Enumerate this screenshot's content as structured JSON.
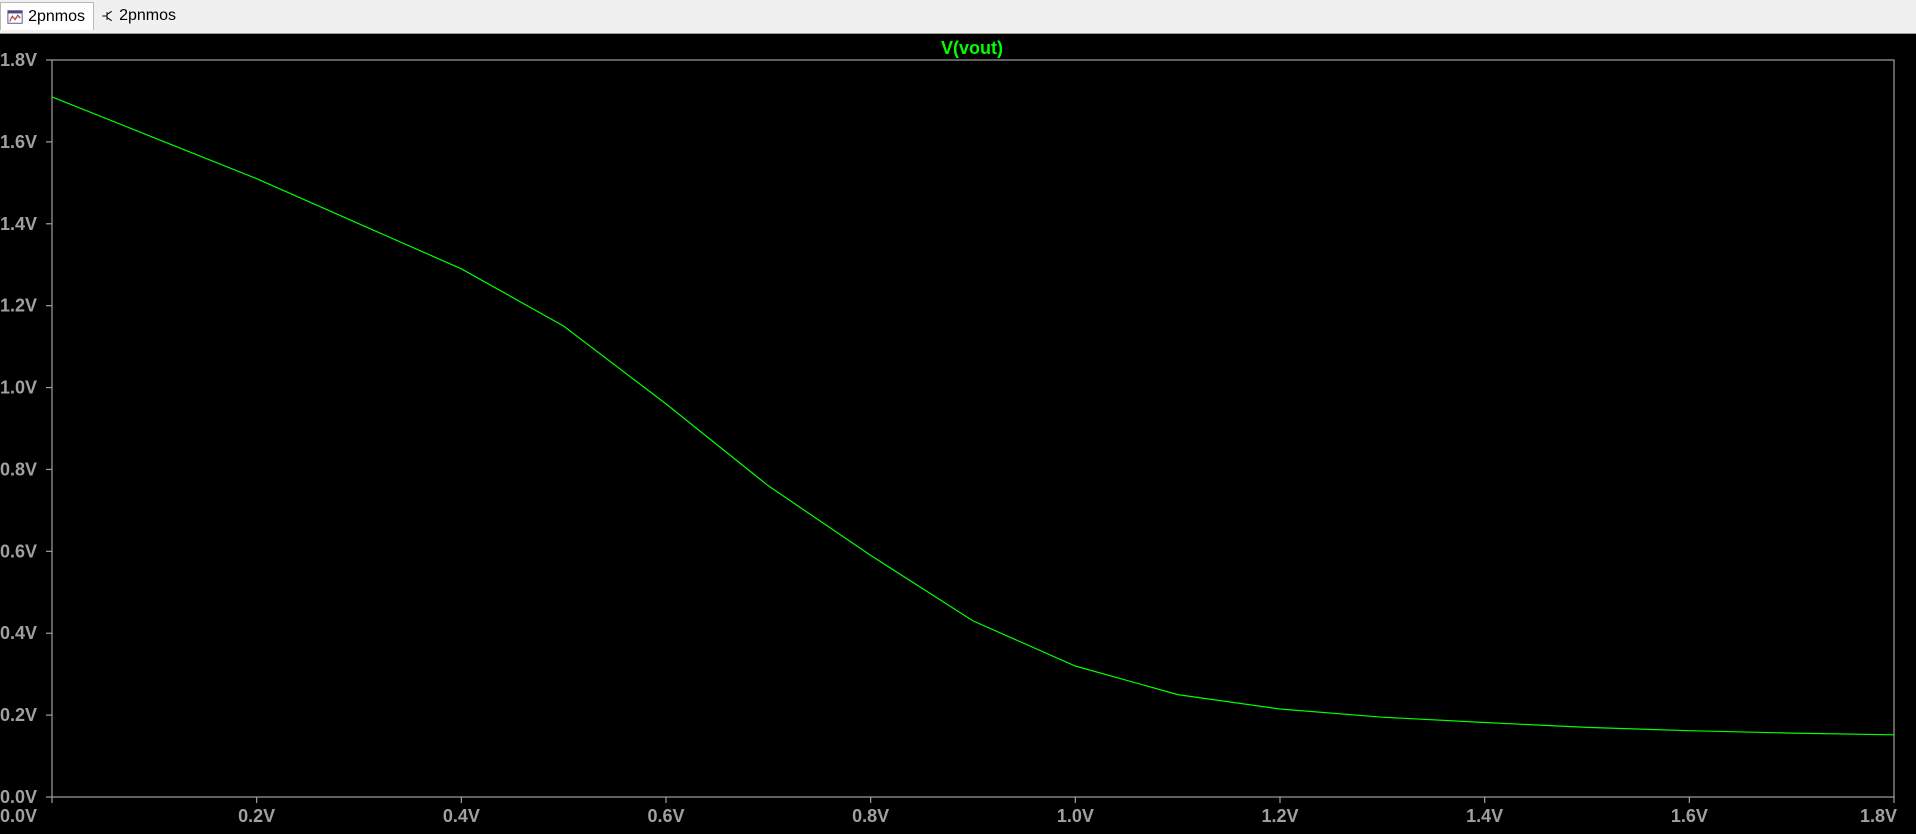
{
  "tabs": [
    {
      "label": "2pnmos",
      "icon": "waveform-icon",
      "active": true
    },
    {
      "label": "2pnmos",
      "icon": "schematic-icon",
      "active": false
    }
  ],
  "chart_data": {
    "type": "line",
    "title": "V(vout)",
    "title_color": "#00ff00",
    "xlabel": "",
    "ylabel": "",
    "xlim": [
      0,
      1.8
    ],
    "ylim": [
      0,
      1.8
    ],
    "x_ticks": [
      "0.0V",
      "0.2V",
      "0.4V",
      "0.6V",
      "0.8V",
      "1.0V",
      "1.2V",
      "1.4V",
      "1.6V",
      "1.8V"
    ],
    "y_ticks": [
      "0.0V",
      "0.2V",
      "0.4V",
      "0.6V",
      "0.8V",
      "1.0V",
      "1.2V",
      "1.4V",
      "1.6V",
      "1.8V"
    ],
    "grid": false,
    "background": "#000000",
    "axis_color": "#a0a0a0",
    "series": [
      {
        "name": "V(vout)",
        "color": "#00ff00",
        "x": [
          0.0,
          0.1,
          0.2,
          0.3,
          0.4,
          0.5,
          0.6,
          0.7,
          0.8,
          0.9,
          1.0,
          1.1,
          1.2,
          1.3,
          1.4,
          1.5,
          1.6,
          1.7,
          1.8
        ],
        "y": [
          1.71,
          1.61,
          1.51,
          1.4,
          1.29,
          1.15,
          0.96,
          0.76,
          0.59,
          0.43,
          0.32,
          0.25,
          0.215,
          0.195,
          0.182,
          0.17,
          0.162,
          0.156,
          0.152
        ]
      }
    ]
  }
}
